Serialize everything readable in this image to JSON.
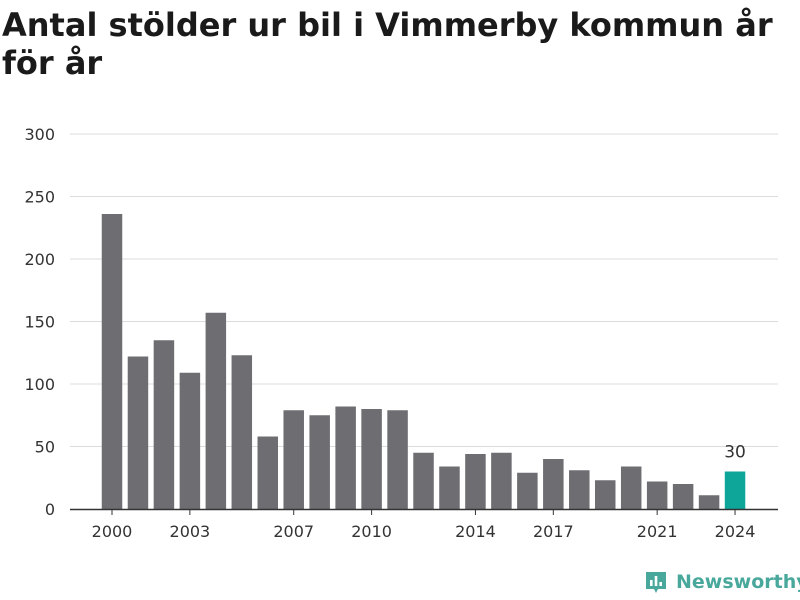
{
  "chart_data": {
    "type": "bar",
    "title": "Antal stölder ur bil i Vimmerby kommun år för år",
    "categories": [
      "2000",
      "2001",
      "2002",
      "2003",
      "2004",
      "2005",
      "2006",
      "2007",
      "2008",
      "2009",
      "2010",
      "2011",
      "2012",
      "2013",
      "2014",
      "2015",
      "2016",
      "2017",
      "2018",
      "2019",
      "2020",
      "2021",
      "2022",
      "2023",
      "2024"
    ],
    "values": [
      236,
      122,
      135,
      109,
      157,
      123,
      58,
      79,
      75,
      82,
      80,
      79,
      45,
      34,
      44,
      45,
      29,
      40,
      31,
      23,
      34,
      22,
      20,
      11,
      30
    ],
    "x_tick_labels": [
      "2000",
      "2003",
      "2007",
      "2010",
      "2014",
      "2017",
      "2021",
      "2024"
    ],
    "y_ticks": [
      0,
      50,
      100,
      150,
      200,
      250,
      300
    ],
    "ylim": [
      0,
      300
    ],
    "xlabel": "",
    "ylabel": "",
    "grid": true,
    "highlight": {
      "category": "2024",
      "label": "30"
    },
    "colors": {
      "bar": "#6e6d72",
      "highlight": "#0fa69a",
      "grid": "#dcdcdc",
      "axis": "#333333",
      "text": "#333333"
    }
  },
  "branding": {
    "logo_text": "Newsworthy",
    "logo_icon": "newsworthy-bar-chart-icon",
    "logo_color": "#49a89c"
  }
}
